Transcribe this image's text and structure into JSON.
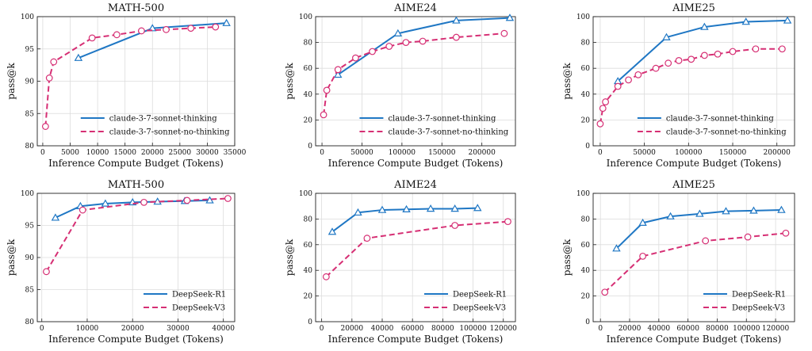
{
  "figure": {
    "series_styles": {
      "solid": {
        "color": "#1f77c4",
        "marker": "triangle",
        "dash": false
      },
      "dashed": {
        "color": "#d62f74",
        "marker": "circle",
        "dash": true
      }
    }
  },
  "chart_data": [
    {
      "type": "line",
      "title": "MATH-500",
      "xlabel": "Inference Compute Budget (Tokens)",
      "ylabel": "pass@k",
      "xlim": [
        -1000,
        35000
      ],
      "ylim": [
        80,
        100
      ],
      "xticks": [
        0,
        5000,
        10000,
        15000,
        20000,
        25000,
        30000,
        35000
      ],
      "xtick_labels": [
        "0",
        "5000",
        "10000",
        "15000",
        "20000",
        "25000",
        "30000",
        "35000"
      ],
      "yticks": [
        80,
        85,
        90,
        95,
        100
      ],
      "ytick_labels": [
        "80",
        "85",
        "90",
        "95",
        "100"
      ],
      "legend_position": "lower-right",
      "series": [
        {
          "name": "claude-3-7-sonnet-thinking",
          "style": "solid",
          "x": [
            6500,
            20000,
            33500
          ],
          "y": [
            93.6,
            98.2,
            99.0
          ]
        },
        {
          "name": "claude-3-7-sonnet-no-thinking",
          "style": "dashed",
          "x": [
            500,
            1200,
            2000,
            9000,
            13500,
            18000,
            22500,
            27000,
            31500
          ],
          "y": [
            83.0,
            90.5,
            93.0,
            96.7,
            97.2,
            97.8,
            98.0,
            98.2,
            98.4
          ]
        }
      ]
    },
    {
      "type": "line",
      "title": "AIME24",
      "xlabel": "Inference Compute Budget (Tokens)",
      "ylabel": "pass@k",
      "xlim": [
        -8000,
        242000
      ],
      "ylim": [
        0,
        100
      ],
      "xticks": [
        0,
        50000,
        100000,
        150000,
        200000
      ],
      "xtick_labels": [
        "0",
        "50000",
        "100000",
        "150000",
        "200000"
      ],
      "yticks": [
        0,
        20,
        40,
        60,
        80,
        100
      ],
      "ytick_labels": [
        "0",
        "20",
        "40",
        "60",
        "80",
        "100"
      ],
      "legend_position": "lower-right",
      "series": [
        {
          "name": "claude-3-7-sonnet-thinking",
          "style": "solid",
          "x": [
            20000,
            95000,
            168000,
            235000
          ],
          "y": [
            55,
            87,
            97,
            99
          ]
        },
        {
          "name": "claude-3-7-sonnet-no-thinking",
          "style": "dashed",
          "x": [
            2000,
            6000,
            20000,
            42000,
            63000,
            84000,
            105000,
            126000,
            168000,
            228000
          ],
          "y": [
            24,
            43,
            59,
            68,
            73,
            77,
            80,
            81,
            84,
            87
          ]
        }
      ]
    },
    {
      "type": "line",
      "title": "AIME25",
      "xlabel": "Inference Compute Budget (Tokens)",
      "ylabel": "pass@k",
      "xlim": [
        -8000,
        220000
      ],
      "ylim": [
        0,
        100
      ],
      "xticks": [
        0,
        50000,
        100000,
        150000,
        200000
      ],
      "xtick_labels": [
        "0",
        "50000",
        "100000",
        "150000",
        "200000"
      ],
      "yticks": [
        0,
        20,
        40,
        60,
        80,
        100
      ],
      "ytick_labels": [
        "0",
        "20",
        "40",
        "60",
        "80",
        "100"
      ],
      "legend_position": "lower-right",
      "series": [
        {
          "name": "claude-3-7-sonnet-thinking",
          "style": "solid",
          "x": [
            20000,
            75000,
            118000,
            165000,
            212000
          ],
          "y": [
            50,
            84,
            92,
            96,
            97
          ]
        },
        {
          "name": "claude-3-7-sonnet-no-thinking",
          "style": "dashed",
          "x": [
            0,
            3000,
            6000,
            20000,
            32000,
            43000,
            63000,
            77000,
            89000,
            103000,
            118000,
            133000,
            150000,
            176000,
            206000
          ],
          "y": [
            17,
            29,
            34,
            46,
            51,
            55,
            60,
            64,
            66,
            67,
            70,
            71,
            73,
            75,
            75
          ]
        }
      ]
    },
    {
      "type": "line",
      "title": "MATH-500",
      "xlabel": "Inference Compute Budget (Tokens)",
      "ylabel": "pass@k",
      "xlim": [
        -1000,
        42500
      ],
      "ylim": [
        80,
        100
      ],
      "xticks": [
        0,
        10000,
        20000,
        30000,
        40000
      ],
      "xtick_labels": [
        "0",
        "10000",
        "20000",
        "30000",
        "40000"
      ],
      "yticks": [
        80,
        85,
        90,
        95,
        100
      ],
      "ytick_labels": [
        "80",
        "85",
        "90",
        "95",
        "100"
      ],
      "legend_position": "lower-right",
      "series": [
        {
          "name": "DeepSeek-R1",
          "style": "solid",
          "x": [
            3000,
            8500,
            14000,
            20000,
            25500,
            31500,
            37000
          ],
          "y": [
            96.2,
            98.0,
            98.4,
            98.6,
            98.7,
            98.8,
            98.9
          ]
        },
        {
          "name": "DeepSeek-V3",
          "style": "dashed",
          "x": [
            1000,
            9000,
            22500,
            32000,
            41000
          ],
          "y": [
            87.8,
            97.4,
            98.6,
            98.9,
            99.2
          ]
        }
      ]
    },
    {
      "type": "line",
      "title": "AIME24",
      "xlabel": "Inference Compute Budget (Tokens)",
      "ylabel": "pass@k",
      "xlim": [
        -4000,
        128000
      ],
      "ylim": [
        0,
        100
      ],
      "xticks": [
        0,
        20000,
        40000,
        60000,
        80000,
        100000,
        120000
      ],
      "xtick_labels": [
        "0",
        "20000",
        "40000",
        "60000",
        "80000",
        "100000",
        "120000"
      ],
      "yticks": [
        0,
        20,
        40,
        60,
        80,
        100
      ],
      "ytick_labels": [
        "0",
        "20",
        "40",
        "60",
        "80",
        "100"
      ],
      "legend_position": "lower-right",
      "series": [
        {
          "name": "DeepSeek-R1",
          "style": "solid",
          "x": [
            7000,
            24000,
            40000,
            56000,
            72000,
            88000,
            103000
          ],
          "y": [
            70,
            85,
            87,
            87.5,
            88,
            88,
            88.5
          ]
        },
        {
          "name": "DeepSeek-V3",
          "style": "dashed",
          "x": [
            3000,
            30000,
            88000,
            123000
          ],
          "y": [
            35,
            65,
            75,
            78
          ]
        }
      ]
    },
    {
      "type": "line",
      "title": "AIME25",
      "xlabel": "Inference Compute Budget (Tokens)",
      "ylabel": "pass@k",
      "xlim": [
        -5000,
        133000
      ],
      "ylim": [
        0,
        100
      ],
      "xticks": [
        0,
        20000,
        40000,
        60000,
        80000,
        100000,
        120000
      ],
      "xtick_labels": [
        "0",
        "20000",
        "40000",
        "60000",
        "80000",
        "100000",
        "120000"
      ],
      "yticks": [
        0,
        20,
        40,
        60,
        80,
        100
      ],
      "ytick_labels": [
        "0",
        "20",
        "40",
        "60",
        "80",
        "100"
      ],
      "legend_position": "lower-right",
      "series": [
        {
          "name": "DeepSeek-R1",
          "style": "solid",
          "x": [
            11000,
            29000,
            48000,
            68000,
            86000,
            105000,
            124000
          ],
          "y": [
            57,
            77,
            82,
            84,
            86,
            86.5,
            87
          ]
        },
        {
          "name": "DeepSeek-V3",
          "style": "dashed",
          "x": [
            3000,
            29000,
            72000,
            101000,
            127000
          ],
          "y": [
            23,
            51,
            63,
            66,
            69
          ]
        }
      ]
    }
  ]
}
